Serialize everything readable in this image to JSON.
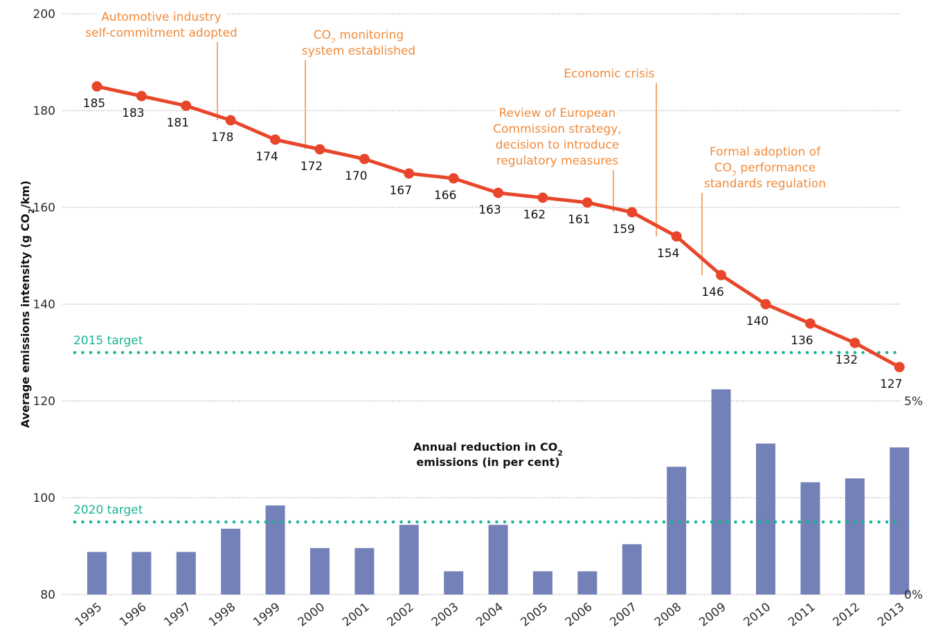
{
  "chart_data": {
    "type": "line",
    "ylabel_pre": "Average emissions intensity (g CO",
    "ylabel_sub": "2",
    "ylabel_post": "/km)",
    "ylim": [
      80,
      200
    ],
    "yticks": [
      "80",
      "100",
      "120",
      "140",
      "160",
      "180",
      "200"
    ],
    "y2ticks": [
      "0%",
      "5%"
    ],
    "y2lim": [
      0,
      5
    ],
    "grid": true,
    "x": [
      "1995",
      "1996",
      "1997",
      "1998",
      "1999",
      "2000",
      "2001",
      "2002",
      "2003",
      "2004",
      "2005",
      "2006",
      "2007",
      "2008",
      "2009",
      "2010",
      "2011",
      "2012",
      "2013"
    ],
    "series": [
      {
        "values": [
          185,
          183,
          181,
          178,
          174,
          172,
          170,
          167,
          166,
          163,
          162,
          161,
          159,
          154,
          146,
          140,
          136,
          132,
          127
        ],
        "color": "#e8462a"
      }
    ],
    "bars": {
      "title_pre": "Annual reduction in CO",
      "title_sub": "2",
      "title_line2": "emissions (in per cent)",
      "values": [
        1.1,
        1.1,
        1.1,
        1.7,
        2.3,
        1.2,
        1.2,
        1.8,
        0.6,
        1.8,
        0.6,
        0.6,
        1.3,
        3.3,
        5.3,
        3.9,
        2.9,
        3.0,
        3.8
      ],
      "color": "#7480b8"
    },
    "targets": [
      {
        "label": "2015 target",
        "value": 130,
        "color": "#1ab394"
      },
      {
        "label": "2020 target",
        "value": 95,
        "color": "#1ab394"
      }
    ],
    "annotations": [
      {
        "lines": [
          "Automotive industry",
          "self-commitment adopted"
        ],
        "year": "1998"
      },
      {
        "lines": [
          "CO|2| monitoring",
          "system established"
        ],
        "year": "2000"
      },
      {
        "lines": [
          "Economic crisis"
        ],
        "year": "2008"
      },
      {
        "lines": [
          "Review of European",
          "Commission strategy,",
          "decision to introduce",
          "regulatory measures"
        ],
        "year": "2007"
      },
      {
        "lines": [
          "Formal adoption of",
          "CO|2| performance",
          "standards regulation"
        ],
        "year": "2009"
      }
    ]
  }
}
